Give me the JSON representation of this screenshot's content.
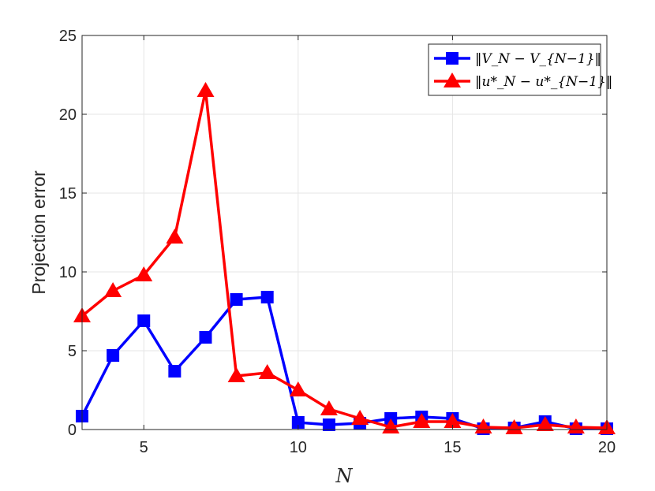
{
  "chart_data": {
    "type": "line",
    "title": "",
    "xlabel": "N",
    "ylabel": "Projection error",
    "xlim": [
      3,
      20
    ],
    "ylim": [
      0,
      25
    ],
    "xticks": [
      5,
      10,
      15,
      20
    ],
    "yticks": [
      0,
      5,
      10,
      15,
      20,
      25
    ],
    "xtick_labels": [
      "5",
      "10",
      "15",
      "20"
    ],
    "ytick_labels": [
      "0",
      "5",
      "10",
      "15",
      "20",
      "25"
    ],
    "grid": true,
    "legend_position": "top-right",
    "x": [
      3,
      4,
      5,
      6,
      7,
      8,
      9,
      10,
      11,
      12,
      13,
      14,
      15,
      16,
      17,
      18,
      19,
      20
    ],
    "series": [
      {
        "name": "‖V_N − V_{N−1}‖",
        "color": "#0000ff",
        "marker": "square",
        "values": [
          0.85,
          4.7,
          6.9,
          3.7,
          5.85,
          8.25,
          8.4,
          0.45,
          0.3,
          0.4,
          0.7,
          0.8,
          0.7,
          0.05,
          0.1,
          0.5,
          0.05,
          0.05
        ]
      },
      {
        "name": "‖u*_N − u*_{N−1}‖",
        "color": "#ff0000",
        "marker": "triangle",
        "values": [
          7.2,
          8.8,
          9.8,
          12.2,
          21.5,
          3.4,
          3.6,
          2.5,
          1.3,
          0.7,
          0.15,
          0.5,
          0.5,
          0.15,
          0.1,
          0.3,
          0.15,
          0.1
        ]
      }
    ]
  }
}
